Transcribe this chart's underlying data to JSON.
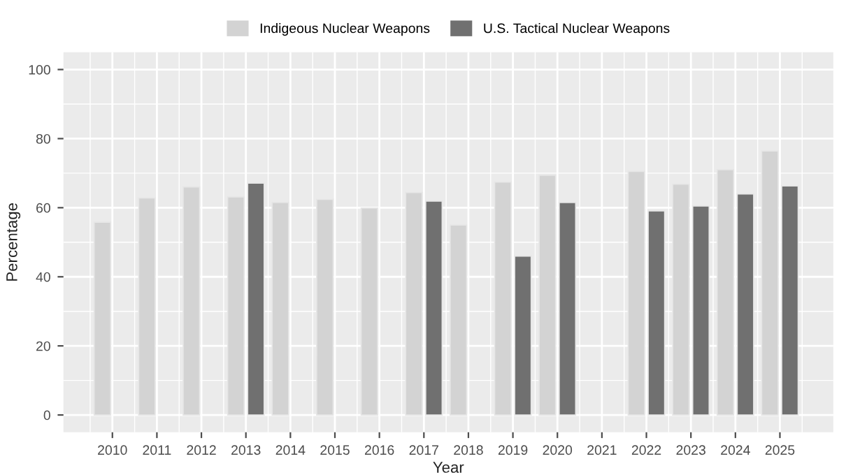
{
  "chart_data": {
    "type": "bar",
    "xlabel": "Year",
    "ylabel": "Percentage",
    "categories": [
      "2010",
      "2011",
      "2012",
      "2013",
      "2014",
      "2015",
      "2016",
      "2017",
      "2018",
      "2019",
      "2020",
      "2021",
      "2022",
      "2023",
      "2024",
      "2025"
    ],
    "series": [
      {
        "name": "Indigeous Nuclear Weapons",
        "color": "#d3d3d3",
        "values": [
          55.8,
          62.8,
          66.0,
          63.1,
          61.5,
          62.4,
          59.9,
          64.4,
          55.0,
          67.4,
          69.4,
          null,
          70.5,
          66.8,
          71.0,
          76.4
        ]
      },
      {
        "name": "U.S. Tactical Nuclear Weapons",
        "color": "#707070",
        "values": [
          null,
          null,
          null,
          67.1,
          null,
          null,
          null,
          61.9,
          null,
          46.0,
          61.5,
          null,
          59.1,
          60.5,
          64.0,
          66.3
        ]
      }
    ],
    "ylim": [
      -5,
      105
    ],
    "yticks": [
      0,
      20,
      40,
      60,
      80,
      100
    ],
    "grid": true,
    "legend": "top"
  }
}
